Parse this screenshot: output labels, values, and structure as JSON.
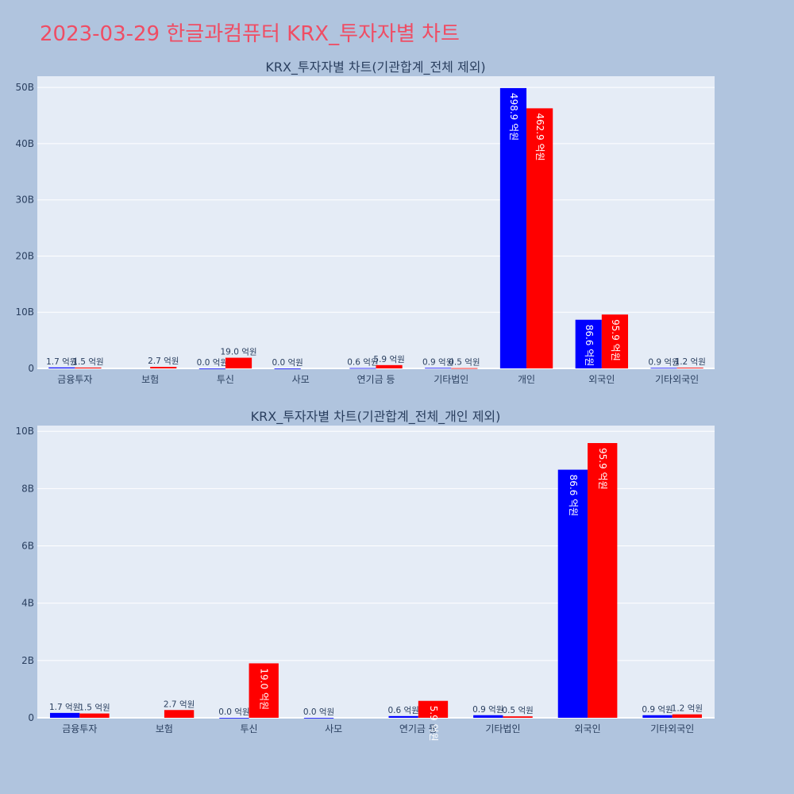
{
  "page_title": "2023-03-29 한글과컴퓨터 KRX_투자자별 차트",
  "colors": {
    "buy": "#0000ff",
    "sell": "#ff0000",
    "plot_bg": "#e5ecf6",
    "page_bg": "#b0c4de",
    "title": "#ef4d64"
  },
  "chart_data": [
    {
      "type": "bar",
      "title": "KRX_투자자별 차트(기관합계_전체 제외)",
      "categories": [
        "금융투자",
        "보험",
        "투신",
        "사모",
        "연기금 등",
        "기타법인",
        "개인",
        "외국인",
        "기타외국인"
      ],
      "series": [
        {
          "values": [
            0.17,
            null,
            0.0,
            0.0,
            0.06,
            0.09,
            49.89,
            8.66,
            0.09
          ],
          "labels": [
            "1.7 억원",
            "",
            "0.0 억원",
            "0.0 억원",
            "0.6 억원",
            "0.9 억원",
            "498.9 억원",
            "86.6 억원",
            "0.9 억원"
          ]
        },
        {
          "values": [
            0.15,
            0.27,
            1.9,
            null,
            0.59,
            0.05,
            46.29,
            9.59,
            0.12
          ],
          "labels": [
            "1.5 억원",
            "2.7 억원",
            "19.0 억원",
            "",
            "5.9 억원",
            "0.5 억원",
            "462.9 억원",
            "95.9 억원",
            "1.2 억원"
          ]
        }
      ],
      "yticks": [
        "0",
        "10B",
        "20B",
        "30B",
        "40B",
        "50B"
      ],
      "ylim": [
        0,
        52
      ],
      "grid": true
    },
    {
      "type": "bar",
      "title": "KRX_투자자별 차트(기관합계_전체_개인 제외)",
      "categories": [
        "금융투자",
        "보험",
        "투신",
        "사모",
        "연기금 등",
        "기타법인",
        "외국인",
        "기타외국인"
      ],
      "series": [
        {
          "values": [
            0.17,
            null,
            0.0,
            0.0,
            0.06,
            0.09,
            8.66,
            0.09
          ],
          "labels": [
            "1.7 억원",
            "",
            "0.0 억원",
            "0.0 억원",
            "0.6 억원",
            "0.9 억원",
            "86.6 억원",
            "0.9 억원"
          ]
        },
        {
          "values": [
            0.15,
            0.27,
            1.9,
            null,
            0.59,
            0.05,
            9.59,
            0.12
          ],
          "labels": [
            "1.5 억원",
            "2.7 억원",
            "19.0 억원",
            "",
            "5.9 억원",
            "0.5 억원",
            "95.9 억원",
            "1.2 억원"
          ]
        }
      ],
      "yticks": [
        "0",
        "2B",
        "4B",
        "6B",
        "8B",
        "10B"
      ],
      "ylim": [
        0,
        10.2
      ],
      "grid": true
    }
  ]
}
